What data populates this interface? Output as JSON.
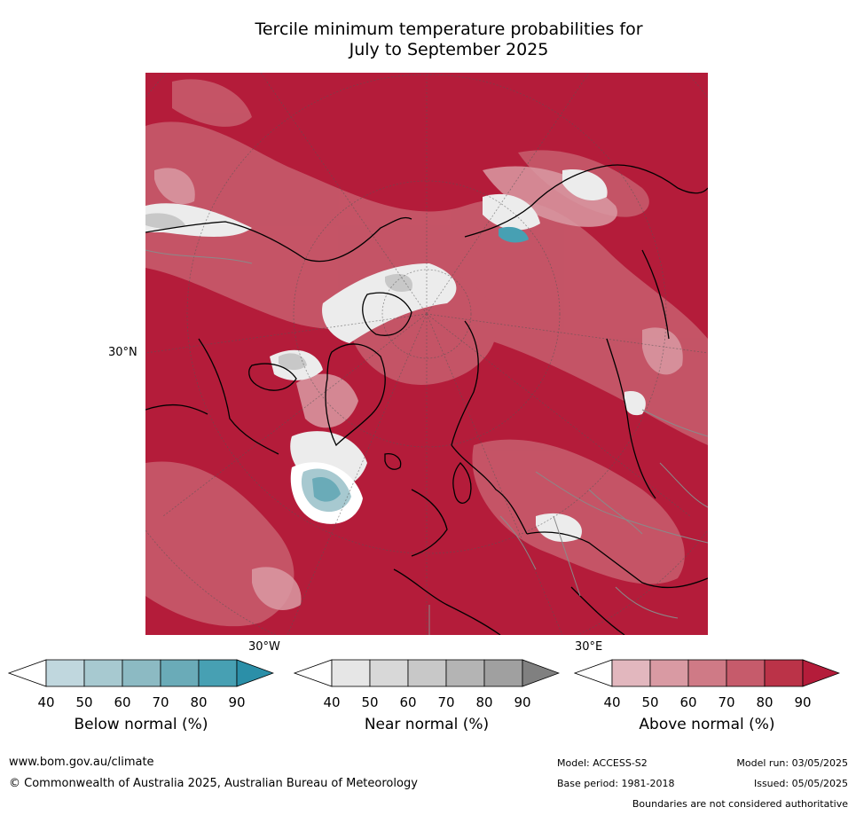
{
  "title_line1": "Tercile minimum temperature probabilities for",
  "title_line2": "July to September 2025",
  "map": {
    "lat_label": "30°N",
    "lon_label_west": "30°W",
    "lon_label_east": "30°E",
    "dominant_color": "#b41c3a"
  },
  "colorbars": [
    {
      "title": "Below normal (%)",
      "ticks": [
        "40",
        "50",
        "60",
        "70",
        "80",
        "90"
      ],
      "colors": [
        "#ffffff",
        "#c0d7de",
        "#a7c9d0",
        "#8cbac3",
        "#6aabb8",
        "#47a0b3",
        "#2b8fa8"
      ]
    },
    {
      "title": "Near normal (%)",
      "ticks": [
        "40",
        "50",
        "60",
        "70",
        "80",
        "90"
      ],
      "colors": [
        "#ffffff",
        "#e6e6e6",
        "#d8d8d8",
        "#c8c8c8",
        "#b4b4b4",
        "#a0a0a0",
        "#808080"
      ]
    },
    {
      "title": "Above normal (%)",
      "ticks": [
        "40",
        "50",
        "60",
        "70",
        "80",
        "90"
      ],
      "colors": [
        "#ffffff",
        "#e2b7be",
        "#d99aa3",
        "#cf7a86",
        "#c65b6b",
        "#bb3348",
        "#b41c3a"
      ]
    }
  ],
  "footer": {
    "website": "www.bom.gov.au/climate",
    "copyright": "© Commonwealth of Australia 2025, Australian Bureau of Meteorology",
    "model": "Model: ACCESS-S2",
    "model_run": "Model run: 03/05/2025",
    "base_period": "Base period: 1981-2018",
    "issued": "Issued: 05/05/2025",
    "disclaimer": "Boundaries are not considered authoritative"
  }
}
